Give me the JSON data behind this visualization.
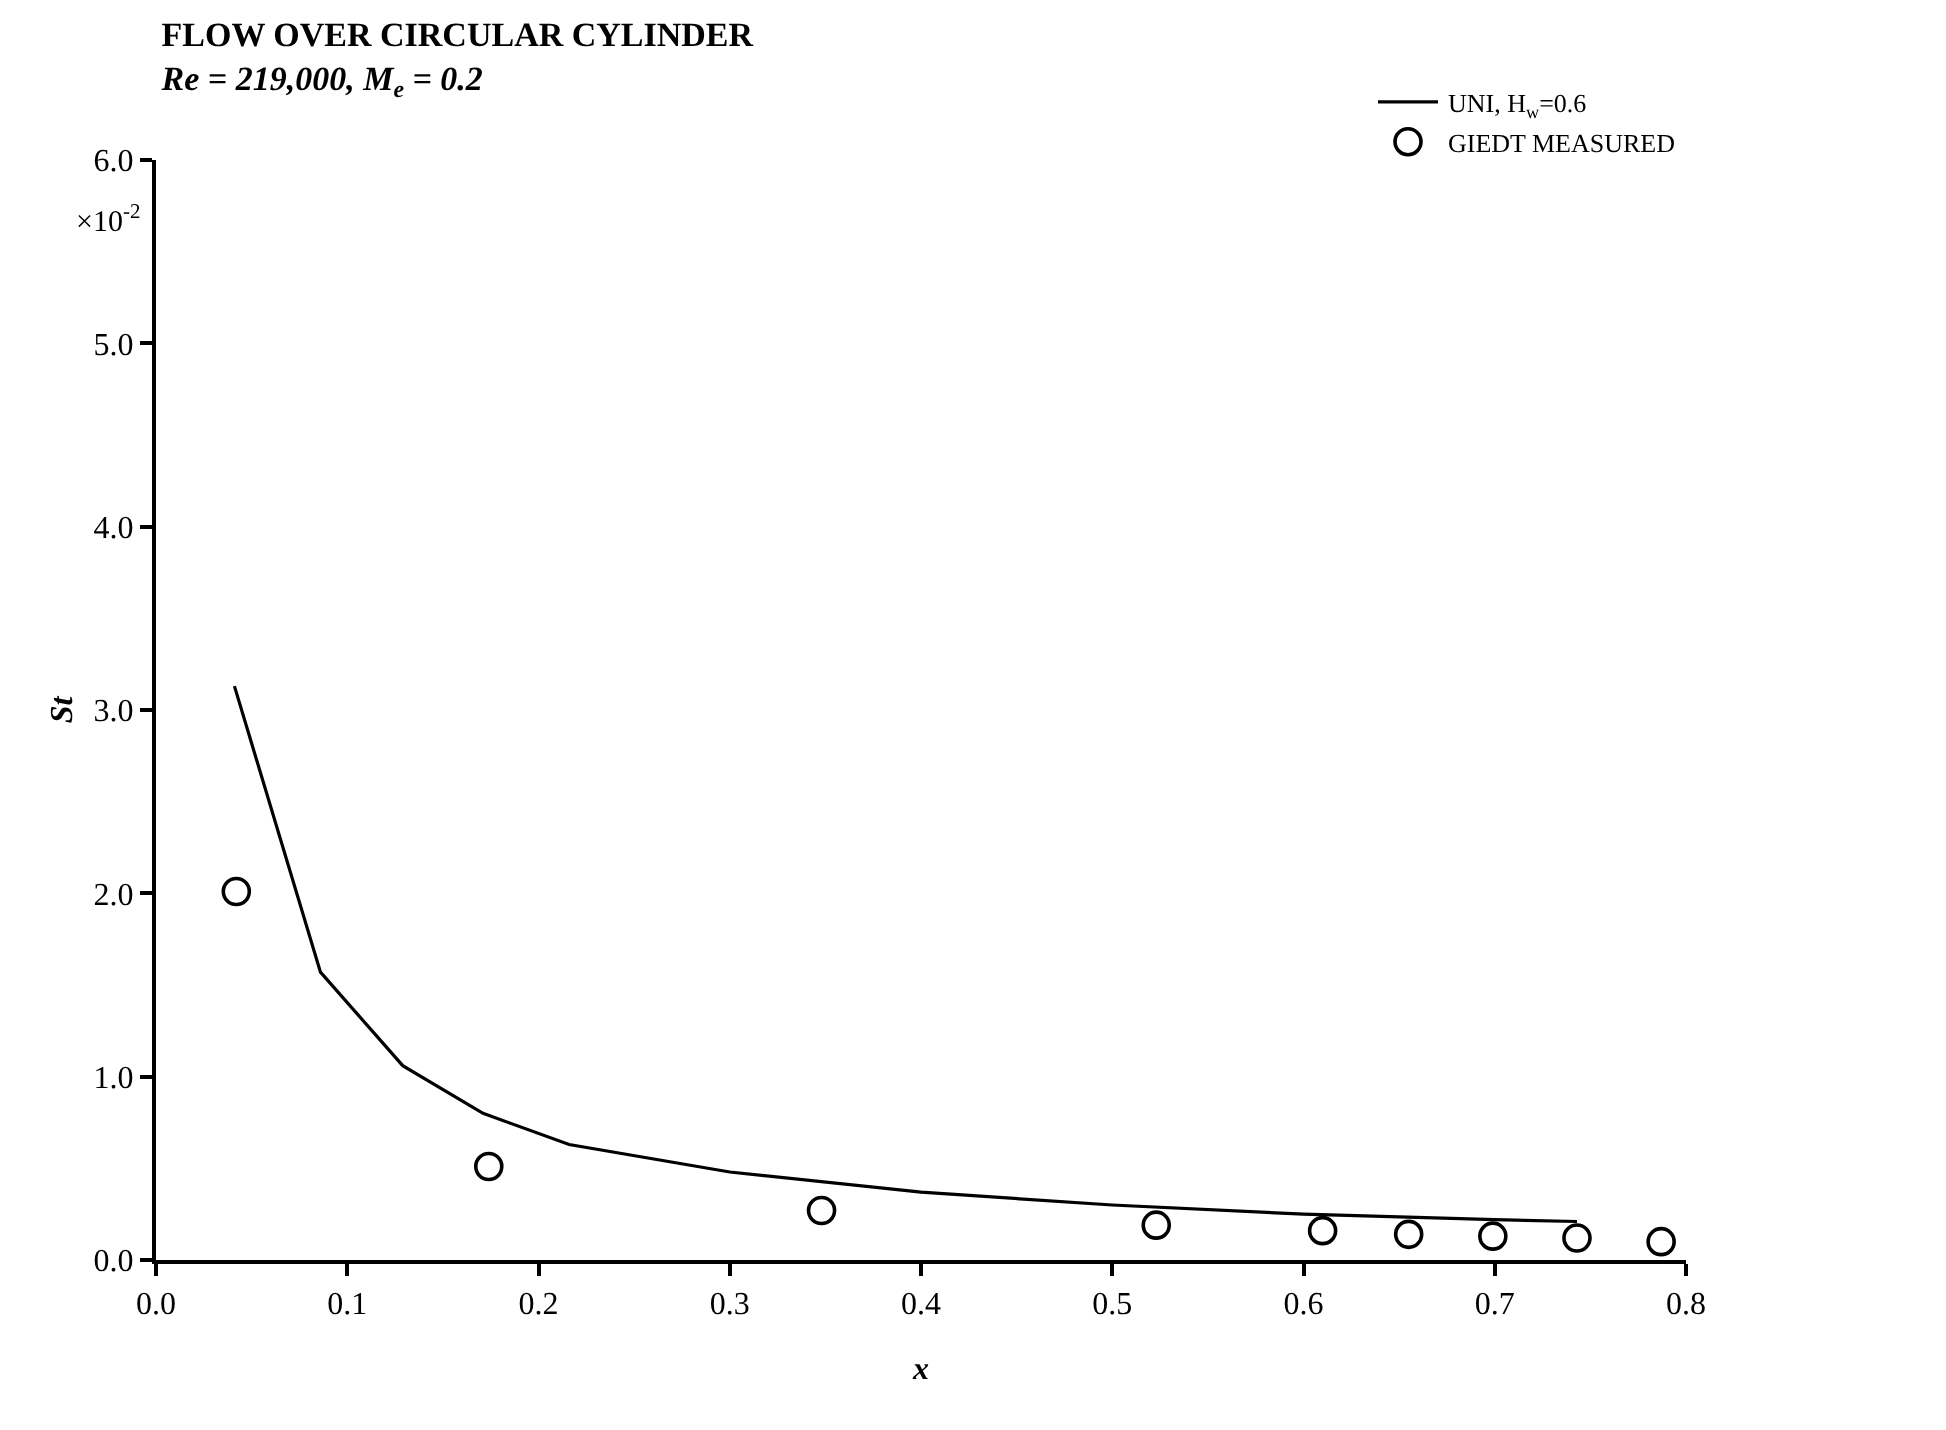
{
  "chart_data": {
    "type": "line",
    "title": "FLOW OVER CIRCULAR CYLINDER",
    "subtitle": "Re = 219,000, M$_{e}$ = 0.2",
    "xlabel": "x",
    "ylabel": "St",
    "annotations": [
      "×10$^{-2}$"
    ],
    "series": [
      {
        "name": "UNI, H$_{w}$=0.6",
        "color": "#000000",
        "marker": "none",
        "line_style": "solid",
        "x": [
          0.041,
          0.086,
          0.129,
          0.171,
          0.216,
          0.3,
          0.4,
          0.5,
          0.6,
          0.7,
          0.743
        ],
        "values": [
          3.13,
          1.57,
          1.06,
          0.8,
          0.63,
          0.48,
          0.37,
          0.3,
          0.25,
          0.22,
          0.21
        ]
      },
      {
        "name": "GIEDT MEASURED",
        "type": "scatter",
        "color": "#000000",
        "marker": "circle",
        "x": [
          0.042,
          0.174,
          0.348,
          0.523,
          0.61,
          0.655,
          0.699,
          0.743,
          0.787
        ],
        "values": [
          2.01,
          0.51,
          0.27,
          0.19,
          0.16,
          0.14,
          0.13,
          0.12,
          0.1
        ]
      }
    ],
    "xlim": [
      0,
      0.8
    ],
    "xticks": [
      {
        "value": 0,
        "label": "0.0"
      },
      0.1,
      0.2,
      0.3,
      0.4,
      0.5,
      0.6,
      0.7,
      0.8
    ],
    "ylim": [
      0,
      6
    ],
    "yticks": [
      {
        "value": 0,
        "label": "0.0"
      },
      {
        "value": 1,
        "label": "1.0"
      },
      {
        "value": 2,
        "label": "2.0"
      },
      {
        "value": 3,
        "label": "3.0"
      },
      {
        "value": 4,
        "label": "4.0"
      },
      {
        "value": 5,
        "label": "5.0"
      },
      {
        "value": 6,
        "label": "6.0"
      }
    ],
    "grid": false,
    "legend": "top right"
  }
}
